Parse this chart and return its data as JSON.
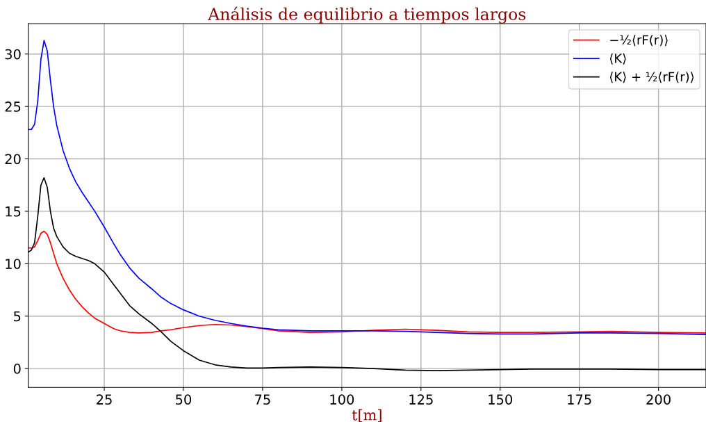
{
  "chart_data": {
    "type": "line",
    "title": "Análisis de equilibrio a tiempos largos",
    "xlabel": "t[m]",
    "x": [
      1,
      2,
      3,
      4,
      5,
      6,
      7,
      8,
      9,
      10,
      12,
      14,
      16,
      18,
      20,
      22,
      25,
      28,
      30,
      33,
      36,
      40,
      43,
      46,
      50,
      55,
      60,
      65,
      70,
      75,
      80,
      90,
      100,
      110,
      120,
      130,
      140,
      150,
      160,
      175,
      185,
      200,
      215
    ],
    "series": [
      {
        "name": "−½⟨rF(r)⟩",
        "color": "#ff0000",
        "values": [
          11.5,
          11.5,
          11.6,
          12.2,
          12.9,
          13.1,
          12.8,
          12.0,
          11.0,
          10.0,
          8.6,
          7.5,
          6.6,
          5.9,
          5.3,
          4.8,
          4.3,
          3.8,
          3.6,
          3.45,
          3.4,
          3.45,
          3.6,
          3.7,
          3.9,
          4.1,
          4.2,
          4.15,
          4.0,
          3.8,
          3.6,
          3.45,
          3.5,
          3.65,
          3.75,
          3.65,
          3.5,
          3.45,
          3.45,
          3.5,
          3.55,
          3.45,
          3.4
        ]
      },
      {
        "name": "⟨K⟩",
        "color": "#0000ff",
        "values": [
          22.8,
          22.8,
          23.3,
          25.5,
          29.5,
          31.3,
          30.3,
          27.5,
          25,
          23.2,
          20.8,
          19.1,
          17.8,
          16.8,
          15.9,
          15,
          13.5,
          11.9,
          10.9,
          9.6,
          8.6,
          7.6,
          6.8,
          6.2,
          5.6,
          5.0,
          4.6,
          4.3,
          4.05,
          3.85,
          3.7,
          3.6,
          3.6,
          3.6,
          3.55,
          3.45,
          3.35,
          3.3,
          3.3,
          3.4,
          3.4,
          3.35,
          3.25
        ]
      },
      {
        "name": "⟨K⟩ + ½⟨rF(r)⟩",
        "color": "#000000",
        "values": [
          11.1,
          11.3,
          12,
          14.5,
          17.5,
          18.2,
          17.3,
          15,
          13.4,
          12.6,
          11.6,
          11.0,
          10.7,
          10.5,
          10.3,
          10.0,
          9.2,
          8.0,
          7.2,
          6.0,
          5.2,
          4.3,
          3.5,
          2.6,
          1.7,
          0.8,
          0.35,
          0.15,
          0.05,
          0.05,
          0.1,
          0.15,
          0.1,
          0.0,
          -0.15,
          -0.2,
          -0.15,
          -0.1,
          -0.05,
          -0.05,
          -0.05,
          -0.1,
          -0.1
        ]
      }
    ],
    "xlim": [
      1,
      215
    ],
    "ylim": [
      -1.8,
      32.9
    ],
    "xticks": [
      25,
      50,
      75,
      100,
      125,
      150,
      175,
      200
    ],
    "yticks": [
      0,
      5,
      10,
      15,
      20,
      25,
      30
    ],
    "grid": true,
    "legend": "top right",
    "marker": "none",
    "line_style": "solid"
  }
}
